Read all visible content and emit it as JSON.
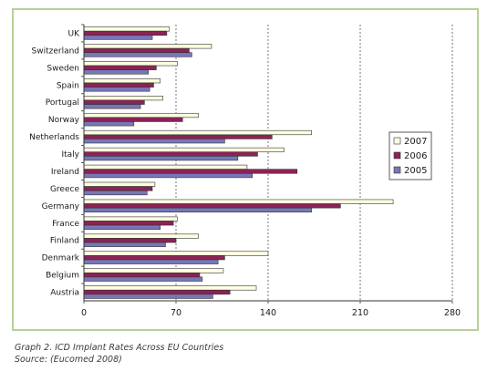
{
  "caption": {
    "title": "Graph 2. ICD Implant Rates Across EU Countries",
    "source": "Source: (Eucomed 2008)"
  },
  "colors": {
    "2007": "#fdfde0",
    "2006": "#8c2255",
    "2005": "#7777b8",
    "frame_border": "#b8d09a"
  },
  "chart_data": {
    "type": "bar",
    "orientation": "horizontal",
    "title": "",
    "xlabel": "",
    "ylabel": "",
    "categories": [
      "UK",
      "Switzerland",
      "Sweden",
      "Spain",
      "Portugal",
      "Norway",
      "Netherlands",
      "Italy",
      "Ireland",
      "Greece",
      "Germany",
      "France",
      "Finland",
      "Denmark",
      "Belgium",
      "Austria"
    ],
    "series": [
      {
        "name": "2007",
        "values": [
          65,
          97,
          71,
          58,
          60,
          87,
          173,
          152,
          124,
          54,
          235,
          71,
          87,
          140,
          106,
          131
        ]
      },
      {
        "name": "2006",
        "values": [
          63,
          80,
          55,
          53,
          46,
          75,
          143,
          132,
          162,
          52,
          195,
          68,
          70,
          107,
          88,
          111
        ]
      },
      {
        "name": "2005",
        "values": [
          52,
          82,
          49,
          50,
          43,
          38,
          107,
          117,
          128,
          48,
          173,
          58,
          62,
          102,
          90,
          98
        ]
      }
    ],
    "xticks": [
      0,
      70,
      140,
      210,
      280
    ],
    "xlim": [
      0,
      280
    ],
    "grid": "dashed vertical lines at 70, 140, 210, 280",
    "legend_position": "right"
  }
}
